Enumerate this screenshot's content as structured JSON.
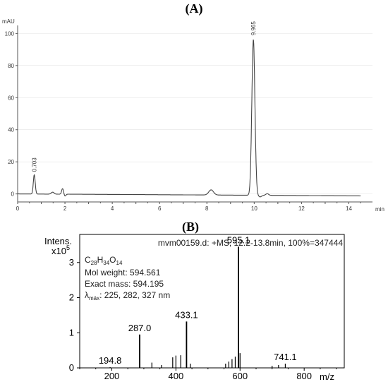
{
  "chart_data": [
    {
      "type": "line",
      "panel_label": "(A)",
      "ylabel": "mAU",
      "xlabel": "min",
      "xlim": [
        0,
        15
      ],
      "ylim": [
        -5,
        105
      ],
      "x_ticks": [
        0,
        2,
        4,
        6,
        8,
        10,
        12,
        14
      ],
      "y_ticks": [
        0,
        20,
        40,
        60,
        80,
        100
      ],
      "peaks": [
        {
          "x": 0.703,
          "y": 12,
          "width": 0.04
        },
        {
          "x": 1.48,
          "y": 1.2,
          "width": 0.06
        },
        {
          "x": 1.9,
          "y": 3.5,
          "width": 0.04
        },
        {
          "x": 8.18,
          "y": 3.2,
          "width": 0.1
        },
        {
          "x": 9.965,
          "y": 97,
          "width": 0.065
        },
        {
          "x": 10.55,
          "y": 1.0,
          "width": 0.06
        }
      ],
      "baseline_end": -1.2,
      "annotations": [
        {
          "label": "0.703",
          "x": 0.703,
          "y": 12
        },
        {
          "label": "9.965",
          "x": 9.965,
          "y": 97
        }
      ]
    },
    {
      "type": "bar",
      "panel_label": "(B)",
      "header": "mvm00159.d: +MS, 12.2-13.8min, 100%=347444",
      "ylabel": "Intens.",
      "yscale_label": "x10",
      "yscale_exp": "5",
      "xlabel": "m/z",
      "xlim": [
        100,
        925
      ],
      "ylim": [
        0,
        3.8
      ],
      "x_ticks": [
        200,
        400,
        600,
        800
      ],
      "y_ticks": [
        0,
        1,
        2,
        3
      ],
      "info": {
        "formula_main": "C",
        "formula_c": "28",
        "formula_h": "H",
        "formula_h_n": "34",
        "formula_o": "O",
        "formula_o_n": "14",
        "mol_weight": "Mol weight: 594.561",
        "exact_mass": "Exact mass: 594.195",
        "lambda_symbol": "λ",
        "lambda_sub": "máx",
        "lambda_values": ": 225, 282, 327 nm"
      },
      "x": [
        194.8,
        287.0,
        325,
        355,
        390,
        400,
        415,
        433.1,
        445,
        555,
        565,
        575,
        585,
        595.1,
        600,
        700,
        720,
        741.1
      ],
      "values": [
        0.02,
        0.95,
        0.15,
        0.08,
        0.3,
        0.35,
        0.36,
        1.32,
        0.12,
        0.12,
        0.18,
        0.25,
        0.32,
        3.45,
        0.42,
        0.06,
        0.08,
        0.12
      ],
      "labels": [
        {
          "text": "194.8",
          "x": 194.8,
          "y": 0.02
        },
        {
          "text": "287.0",
          "x": 287.0,
          "y": 0.95
        },
        {
          "text": "433.1",
          "x": 433.1,
          "y": 1.32
        },
        {
          "text": "595.1",
          "x": 595.1,
          "y": 3.45
        },
        {
          "text": "741.1",
          "x": 741.1,
          "y": 0.12
        }
      ]
    }
  ]
}
